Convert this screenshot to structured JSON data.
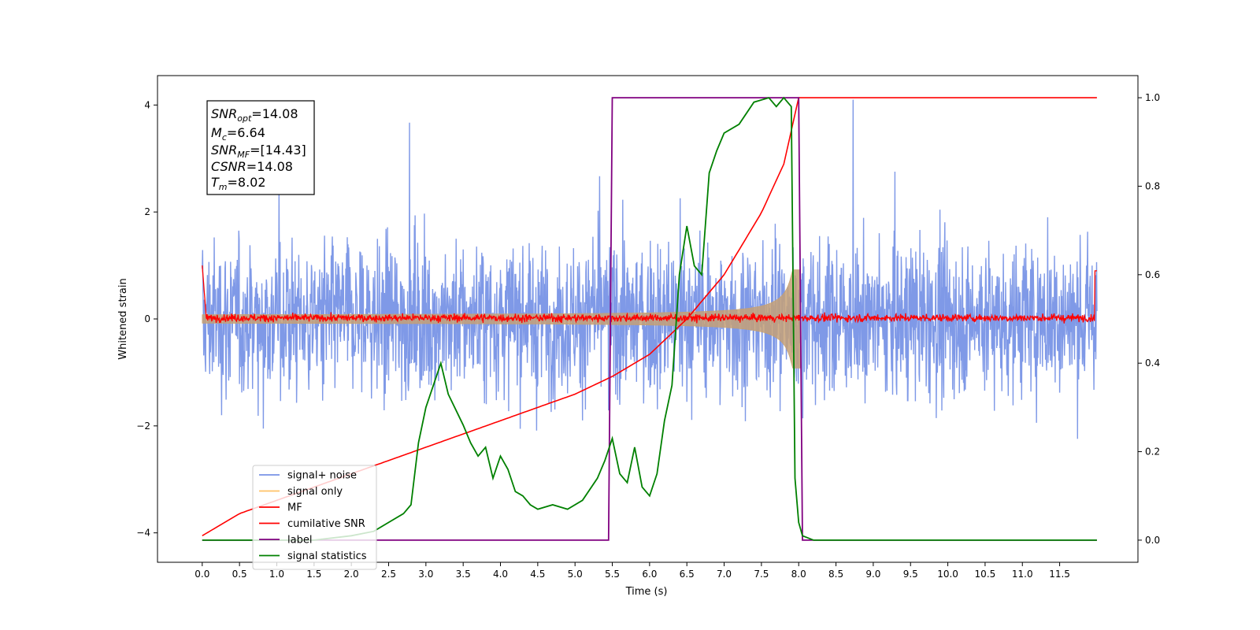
{
  "chart_data": {
    "type": "line",
    "xlabel": "Time (s)",
    "ylabel_left": "Whitened strain",
    "xlim": [
      -0.6,
      12.55
    ],
    "ylim_left": [
      -4.55,
      4.55
    ],
    "ylim_right": [
      -0.05,
      1.05
    ],
    "x_ticks": [
      "0.0",
      "0.5",
      "1.0",
      "1.5",
      "2.0",
      "2.5",
      "3.0",
      "3.5",
      "4.0",
      "4.5",
      "5.0",
      "5.5",
      "6.0",
      "6.5",
      "7.0",
      "7.5",
      "8.0",
      "8.5",
      "9.0",
      "9.5",
      "10.0",
      "10.5",
      "11.0",
      "11.5"
    ],
    "y_ticks_left": [
      "4",
      "2",
      "0",
      "−2",
      "−4"
    ],
    "y_ticks_right": [
      "1.0",
      "0.8",
      "0.6",
      "0.4",
      "0.2",
      "0.0"
    ],
    "grid": false,
    "annotation": {
      "snr_opt": {
        "sym": "SNR",
        "sub": "opt",
        "val": "=14.08"
      },
      "mc": {
        "sym": "M",
        "sub": "c",
        "val": "=6.64"
      },
      "snr_mf": {
        "sym": "SNR",
        "sub": "MF",
        "val": "=[14.43]"
      },
      "csnr": {
        "sym": "CSNR",
        "val": "=14.08"
      },
      "tm": {
        "sym": "T",
        "sub": "m",
        "val": "=8.02"
      }
    },
    "legend": {
      "location": "lower left",
      "entries": [
        {
          "label": "signal+ noise",
          "color": "#7893e6"
        },
        {
          "label": "signal only",
          "color": "#ffc266"
        },
        {
          "label": "MF",
          "color": "#ff0000"
        },
        {
          "label": "cumilative SNR",
          "color": "#ff0000"
        },
        {
          "label": "label",
          "color": "#800080"
        },
        {
          "label": "signal statistics",
          "color": "#008000"
        }
      ]
    },
    "series": [
      {
        "name": "signal+ noise",
        "axis": "left",
        "color": "#7893e6",
        "description": "whitened noisy strain, roughly within [-3.5, 3.5] with spikes to 4.1",
        "x_range": [
          0,
          12.0
        ]
      },
      {
        "name": "signal only",
        "axis": "left",
        "color": "#c4a077",
        "description": "chirp envelope growing from 0 to about 0.9 at merger",
        "x_range": [
          0,
          8.02
        ]
      },
      {
        "name": "MF",
        "axis": "left",
        "color": "#ff0000",
        "description": "matched-filter output near 0, range about -0.1 to 0.2, edge values about 1.0",
        "x_range": [
          0,
          12.0
        ]
      },
      {
        "name": "cumilative SNR",
        "axis": "right",
        "color": "#ff0000",
        "x": [
          0.0,
          0.5,
          1.0,
          1.5,
          2.0,
          2.5,
          3.0,
          3.5,
          4.0,
          4.5,
          5.0,
          5.5,
          6.0,
          6.5,
          7.0,
          7.5,
          7.8,
          8.0,
          8.05,
          12.0
        ],
        "y": [
          0.01,
          0.06,
          0.09,
          0.12,
          0.15,
          0.18,
          0.21,
          0.24,
          0.27,
          0.3,
          0.33,
          0.37,
          0.42,
          0.5,
          0.6,
          0.74,
          0.85,
          1.0,
          1.0,
          1.0
        ]
      },
      {
        "name": "label",
        "axis": "right",
        "color": "#800080",
        "x": [
          0.0,
          5.45,
          5.5,
          8.0,
          8.05,
          12.0
        ],
        "y": [
          0.0,
          0.0,
          1.0,
          1.0,
          0.0,
          0.0
        ]
      },
      {
        "name": "signal statistics",
        "axis": "right",
        "color": "#008000",
        "x": [
          0.0,
          0.5,
          1.0,
          1.5,
          2.0,
          2.3,
          2.5,
          2.7,
          2.8,
          2.9,
          3.0,
          3.1,
          3.2,
          3.3,
          3.5,
          3.6,
          3.7,
          3.8,
          3.9,
          4.0,
          4.1,
          4.2,
          4.3,
          4.4,
          4.5,
          4.7,
          4.9,
          5.1,
          5.3,
          5.4,
          5.5,
          5.6,
          5.7,
          5.8,
          5.9,
          6.0,
          6.1,
          6.2,
          6.3,
          6.4,
          6.5,
          6.6,
          6.7,
          6.8,
          6.9,
          7.0,
          7.2,
          7.4,
          7.6,
          7.7,
          7.8,
          7.9,
          7.95,
          8.0,
          8.05,
          8.2,
          8.5,
          12.0
        ],
        "y": [
          0.0,
          0.0,
          0.0,
          0.0,
          0.01,
          0.02,
          0.04,
          0.06,
          0.08,
          0.22,
          0.3,
          0.35,
          0.4,
          0.33,
          0.26,
          0.22,
          0.19,
          0.21,
          0.14,
          0.19,
          0.16,
          0.11,
          0.1,
          0.08,
          0.07,
          0.08,
          0.07,
          0.09,
          0.14,
          0.18,
          0.23,
          0.15,
          0.13,
          0.21,
          0.12,
          0.1,
          0.15,
          0.27,
          0.35,
          0.6,
          0.71,
          0.62,
          0.6,
          0.83,
          0.88,
          0.92,
          0.94,
          0.99,
          1.0,
          0.98,
          1.0,
          0.98,
          0.14,
          0.04,
          0.01,
          0.0,
          0.0,
          0.0
        ]
      }
    ]
  }
}
